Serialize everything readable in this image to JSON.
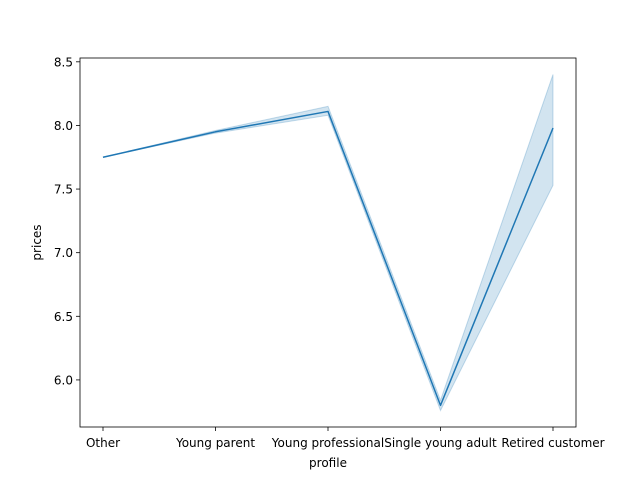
{
  "chart_data": {
    "type": "line",
    "title": "",
    "xlabel": "profile",
    "ylabel": "prices",
    "categories": [
      "Other",
      "Young parent",
      "Young professional",
      "Single young adult",
      "Retired customer"
    ],
    "series": [
      {
        "values": [
          7.75,
          7.95,
          8.11,
          5.8,
          7.98
        ],
        "ci_low": [
          7.75,
          7.94,
          8.08,
          5.76,
          7.53
        ],
        "ci_high": [
          7.75,
          7.96,
          8.15,
          5.84,
          8.4
        ]
      }
    ],
    "ylim": [
      5.63,
      8.53
    ],
    "yticks": [
      6.0,
      6.5,
      7.0,
      7.5,
      8.0,
      8.5
    ],
    "ytick_labels": [
      "6.0",
      "6.5",
      "7.0",
      "7.5",
      "8.0",
      "8.5"
    ],
    "grid": false,
    "legend": "none",
    "colors": {
      "line": "#1f77b4",
      "band": "#1f77b4"
    }
  }
}
